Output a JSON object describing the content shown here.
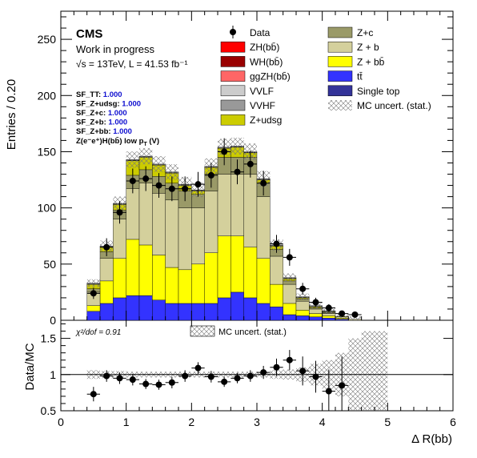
{
  "chart_data": {
    "type": "bar",
    "experiment": "CMS",
    "status": "Work in progress",
    "energy_lumi": "√s = 13TeV, L = 41.53 fb⁻¹",
    "region": "Z(e⁻e⁺)H(bb̄) low p",
    "region_sub": "T",
    "region_tail": " (V)",
    "xlabel": "Δ R(bb)",
    "ylabel": "Entries / 0.20",
    "ratio_ylabel": "Data/MC",
    "chi2_text": "χ²/dof = 0.91",
    "ratio_legend": "MC uncert. (stat.)",
    "xlim": [
      0,
      6
    ],
    "ylim": [
      0,
      275
    ],
    "ratio_ylim": [
      0.5,
      1.75
    ],
    "x_ticks": [
      "0",
      "1",
      "2",
      "3",
      "4",
      "5",
      "6"
    ],
    "y_ticks": [
      "0",
      "50",
      "100",
      "150",
      "200",
      "250"
    ],
    "ratio_ticks": [
      "0.5",
      "1",
      "1.5"
    ],
    "scale_factors": [
      {
        "label": "SF_TT:",
        "value": "1.000"
      },
      {
        "label": "SF_Z+udsg:",
        "value": "1.000"
      },
      {
        "label": "SF_Z+c:",
        "value": "1.000"
      },
      {
        "label": "SF_Z+b:",
        "value": "1.000"
      },
      {
        "label": "SF_Z+bb:",
        "value": "1.000"
      }
    ],
    "legend": [
      {
        "name": "Data",
        "marker": "dot",
        "color": "#000000"
      },
      {
        "name": "Z+c",
        "color": "#9a9a68"
      },
      {
        "name": "ZH(bb̄)",
        "color": "#ff0000"
      },
      {
        "name": "Z + b",
        "color": "#d4d09c"
      },
      {
        "name": "WH(bb̄)",
        "color": "#990000"
      },
      {
        "name": "Z + bb̄",
        "color": "#ffff00"
      },
      {
        "name": "ggZH(bb̄)",
        "color": "#ff6666"
      },
      {
        "name": "tt̄",
        "color": "#3333ff"
      },
      {
        "name": "VVLF",
        "color": "#cccccc"
      },
      {
        "name": "Single top",
        "color": "#333399"
      },
      {
        "name": "VVHF",
        "color": "#999999"
      },
      {
        "name": "MC uncert. (stat.)",
        "marker": "hatch",
        "color": "#888888"
      },
      {
        "name": "Z+udsg",
        "color": "#cccc00"
      }
    ],
    "bin_edges": [
      0.4,
      0.6,
      0.8,
      1.0,
      1.2,
      1.4,
      1.6,
      1.8,
      2.0,
      2.2,
      2.4,
      2.6,
      2.8,
      3.0,
      3.2,
      3.4,
      3.6,
      3.8,
      4.0,
      4.2,
      4.4,
      4.6,
      4.8,
      5.0
    ],
    "series": [
      {
        "name": "tt̄",
        "color": "#3333ff",
        "values": [
          8,
          15,
          20,
          22,
          22,
          18,
          15,
          15,
          15,
          15,
          20,
          25,
          20,
          15,
          12,
          5,
          4,
          3,
          2,
          1,
          0,
          0,
          0
        ]
      },
      {
        "name": "Z + bb̄",
        "color": "#ffff00",
        "values": [
          5,
          20,
          35,
          50,
          45,
          40,
          32,
          30,
          35,
          45,
          55,
          50,
          45,
          40,
          20,
          10,
          5,
          3,
          2,
          1,
          0,
          0,
          0
        ]
      },
      {
        "name": "Z + b",
        "color": "#d4d09c",
        "values": [
          12,
          20,
          35,
          45,
          55,
          55,
          60,
          55,
          50,
          55,
          55,
          55,
          65,
          55,
          25,
          17,
          8,
          4,
          2,
          1,
          1,
          0,
          0
        ]
      },
      {
        "name": "Z+c",
        "color": "#9a9a68",
        "values": [
          3,
          6,
          8,
          12,
          12,
          15,
          15,
          15,
          12,
          15,
          15,
          15,
          15,
          12,
          6,
          3,
          2,
          1,
          1,
          0,
          0,
          0,
          0
        ]
      },
      {
        "name": "Z+udsg",
        "color": "#cccc00",
        "values": [
          4,
          4,
          5,
          13,
          11,
          10,
          9,
          5,
          3,
          6,
          8,
          9,
          4,
          3,
          3,
          2,
          1,
          1,
          0.5,
          0.5,
          0,
          0,
          0
        ]
      },
      {
        "name": "VVHF",
        "color": "#999999",
        "values": [
          0.5,
          0.5,
          0.5,
          0.5,
          0.5,
          0.5,
          0.5,
          0.5,
          0.5,
          0.5,
          0.5,
          0.5,
          0.5,
          0.5,
          0.5,
          0.5,
          0.5,
          0.5,
          0.5,
          0,
          0,
          0,
          0
        ]
      },
      {
        "name": "VVLF",
        "color": "#cccccc",
        "values": [
          0.5,
          0.5,
          0.5,
          0.5,
          0.5,
          0.5,
          0.5,
          0.5,
          0.5,
          0.5,
          0.5,
          0.5,
          0.5,
          0.5,
          0.5,
          0.5,
          0.5,
          0.5,
          0.5,
          0,
          0,
          0,
          0
        ]
      }
    ],
    "data_points": {
      "x": [
        0.5,
        0.7,
        0.9,
        1.1,
        1.3,
        1.5,
        1.7,
        1.9,
        2.1,
        2.3,
        2.5,
        2.7,
        2.9,
        3.1,
        3.3,
        3.5,
        3.7,
        3.9,
        4.1,
        4.3,
        4.5
      ],
      "y": [
        24,
        65,
        96,
        124,
        126,
        120,
        117,
        117,
        121,
        129,
        150,
        132,
        139,
        122,
        68,
        56,
        28,
        16,
        11,
        6,
        5
      ],
      "err": [
        5,
        8,
        10,
        11,
        11,
        11,
        11,
        11,
        11,
        11,
        12,
        11,
        12,
        11,
        8,
        7.5,
        5.3,
        4,
        3.3,
        2.4,
        2.2
      ]
    },
    "ratio_points": {
      "x": [
        0.5,
        0.7,
        0.9,
        1.1,
        1.3,
        1.5,
        1.7,
        1.9,
        2.1,
        2.3,
        2.5,
        2.7,
        2.9,
        3.1,
        3.3,
        3.5,
        3.7,
        3.9,
        4.1,
        4.3
      ],
      "y": [
        0.73,
        0.98,
        0.95,
        0.93,
        0.87,
        0.86,
        0.89,
        0.98,
        1.09,
        0.97,
        0.9,
        0.95,
        0.98,
        1.03,
        1.1,
        1.2,
        1.05,
        0.97,
        0.77,
        0.85
      ],
      "err": [
        0.1,
        0.08,
        0.08,
        0.08,
        0.07,
        0.07,
        0.08,
        0.08,
        0.08,
        0.08,
        0.07,
        0.07,
        0.08,
        0.09,
        0.12,
        0.14,
        0.2,
        0.22,
        0.3,
        0.4
      ]
    },
    "ratio_unc": [
      0.06,
      0.05,
      0.05,
      0.04,
      0.04,
      0.04,
      0.04,
      0.04,
      0.04,
      0.04,
      0.04,
      0.04,
      0.04,
      0.04,
      0.06,
      0.07,
      0.1,
      0.15,
      0.2,
      0.3,
      0.5,
      0.6,
      0.6
    ]
  }
}
